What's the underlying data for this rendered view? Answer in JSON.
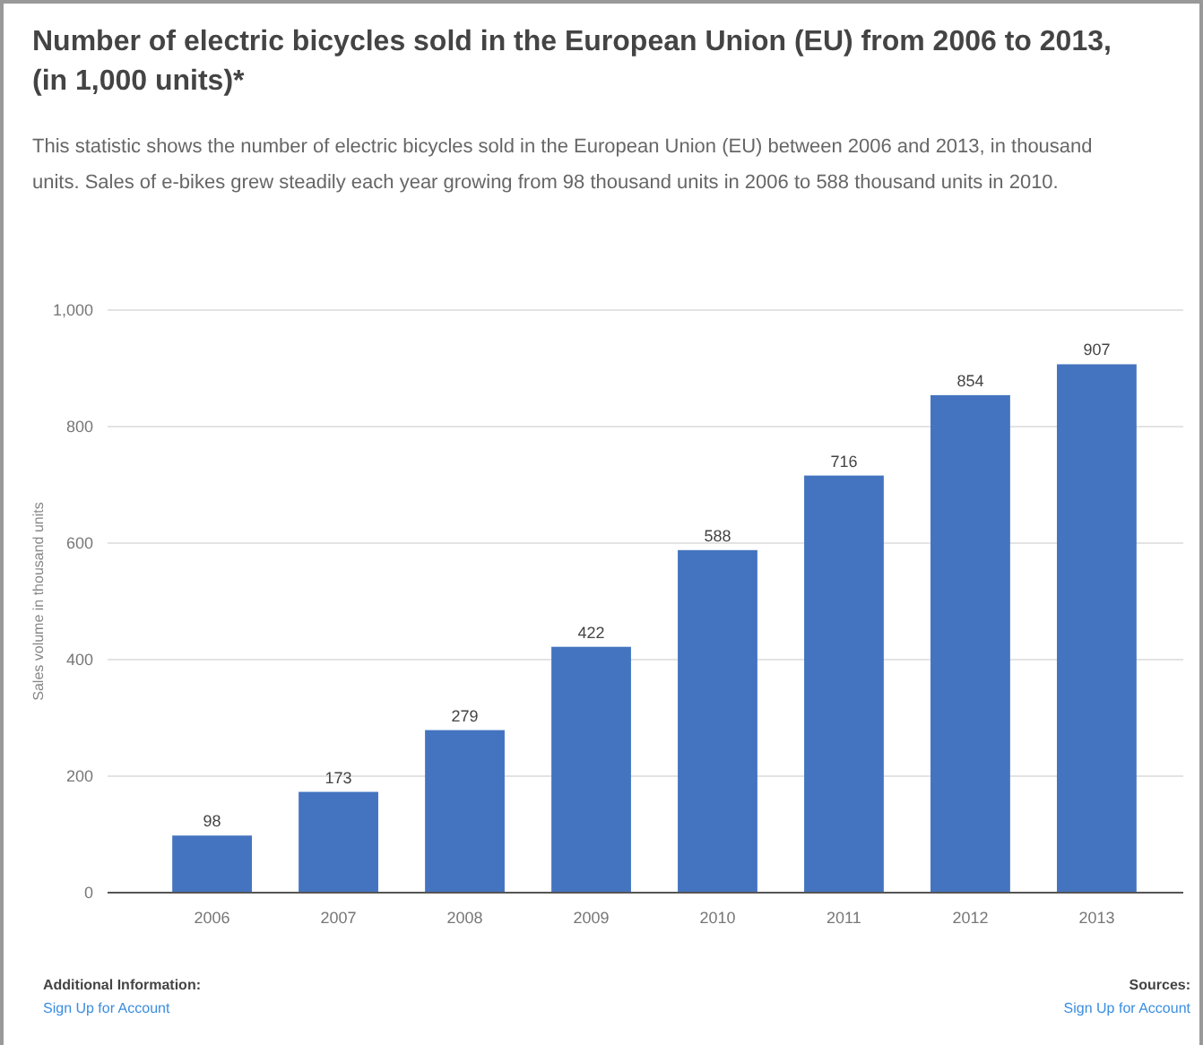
{
  "chart_data": {
    "type": "bar",
    "title": "Number of electric bicycles sold in the European Union (EU) from 2006 to 2013, (in 1,000 units)*",
    "subtitle": "This statistic shows the number of electric bicycles sold in the European Union (EU) between 2006 and 2013, in thousand units. Sales of e-bikes grew steadily each year growing from 98 thousand units in 2006 to 588 thousand units in 2010.",
    "ylabel": "Sales volume in thousand units",
    "categories": [
      "2006",
      "2007",
      "2008",
      "2009",
      "2010",
      "2011",
      "2012",
      "2013"
    ],
    "values": [
      98,
      173,
      279,
      422,
      588,
      716,
      854,
      907
    ],
    "color": "#4474c0",
    "ylim": [
      0,
      1000
    ],
    "yticks": [
      0,
      200,
      400,
      600,
      800,
      {
        "value": 1000,
        "label": "1,000"
      }
    ],
    "grid": "y",
    "data_labels": true,
    "annotations": [
      "Additional Information:",
      "Sign Up for Account",
      "Sources:",
      "Sign Up for Account"
    ]
  }
}
